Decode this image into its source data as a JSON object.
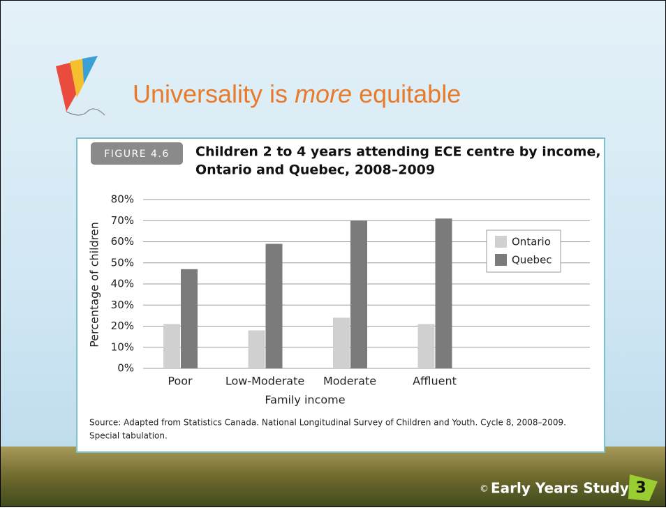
{
  "slide": {
    "title_parts": [
      "Universality is ",
      "more",
      " equitable"
    ],
    "copyright": "©",
    "footer": "Early Years Study",
    "page_number": "3"
  },
  "chart_data": {
    "type": "bar",
    "figure_label": "FIGURE 4.6",
    "title": [
      "Children 2 to 4 years attending ECE centre by income,",
      "Ontario and Quebec, 2008–2009"
    ],
    "x_label": "Family income",
    "y_label": "Percentage of children",
    "categories": [
      "Poor",
      "Low-Moderate",
      "Moderate",
      "Affluent"
    ],
    "series": [
      {
        "name": "Ontario",
        "color": "#d0d0d0",
        "values": [
          21,
          18,
          24,
          21
        ]
      },
      {
        "name": "Quebec",
        "color": "#7b7b7b",
        "values": [
          47,
          59,
          70,
          71
        ]
      }
    ],
    "ylim": [
      0,
      80
    ],
    "yticks": [
      {
        "value": 0,
        "label": "0%"
      },
      {
        "value": 10,
        "label": "10%"
      },
      {
        "value": 20,
        "label": "20%"
      },
      {
        "value": 30,
        "label": "30%"
      },
      {
        "value": 40,
        "label": "40%"
      },
      {
        "value": 50,
        "label": "50%"
      },
      {
        "value": 60,
        "label": "60%"
      },
      {
        "value": 70,
        "label": "70%"
      },
      {
        "value": 80,
        "label": "80%"
      }
    ],
    "grid": true,
    "legend": "right",
    "source": [
      "Source: Adapted from Statistics Canada. National Longitudinal Survey of Children and Youth. Cycle 8, 2008–2009.",
      "Special tabulation."
    ]
  }
}
